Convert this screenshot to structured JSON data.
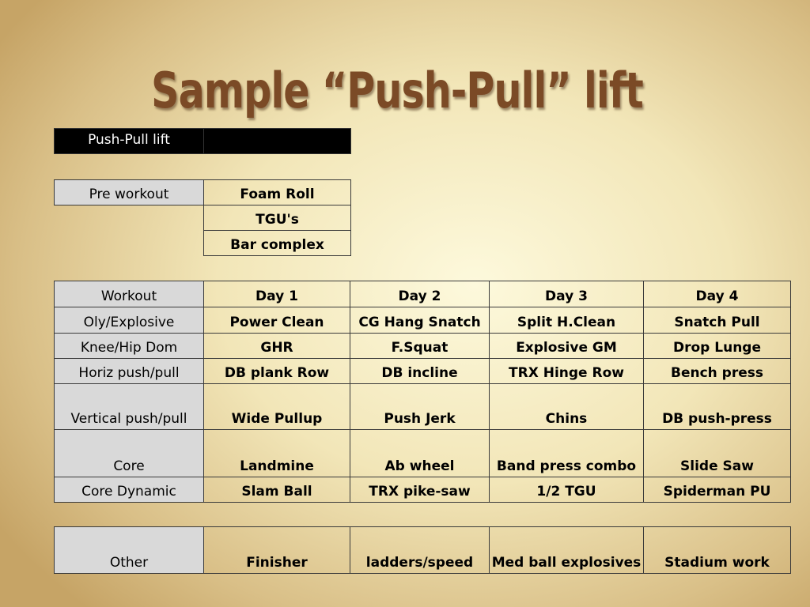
{
  "title": "Sample “Push-Pull” lift",
  "header": {
    "label": "Push-Pull lift",
    "value": ""
  },
  "pre_workout": {
    "label": "Pre workout",
    "items": [
      "Foam Roll",
      "TGU's",
      "Bar complex"
    ]
  },
  "workout": {
    "columns": [
      "Workout",
      "Day 1",
      "Day 2",
      "Day 3",
      "Day 4"
    ],
    "rows": [
      {
        "label": "Oly/Explosive",
        "days": [
          "Power Clean",
          "CG Hang Snatch",
          "Split H.Clean",
          "Snatch Pull"
        ]
      },
      {
        "label": "Knee/Hip Dom",
        "days": [
          "GHR",
          "F.Squat",
          "Explosive GM",
          "Drop Lunge"
        ]
      },
      {
        "label": "Horiz push/pull",
        "days": [
          "DB plank Row",
          "DB incline",
          "TRX Hinge Row",
          "Bench press"
        ]
      },
      {
        "label": "Vertical  push/pull",
        "days": [
          "Wide Pullup",
          "Push Jerk",
          "Chins",
          "DB push-press"
        ]
      },
      {
        "label": "Core",
        "days": [
          "Landmine",
          "Ab wheel",
          "Band press combo",
          "Slide Saw"
        ]
      },
      {
        "label": "Core Dynamic",
        "days": [
          "Slam Ball",
          "TRX pike-saw",
          "1/2 TGU",
          "Spiderman PU"
        ]
      }
    ]
  },
  "other": {
    "label": "Other",
    "days": [
      "Finisher",
      "ladders/speed",
      "Med ball explosives",
      "Stadium work"
    ]
  }
}
